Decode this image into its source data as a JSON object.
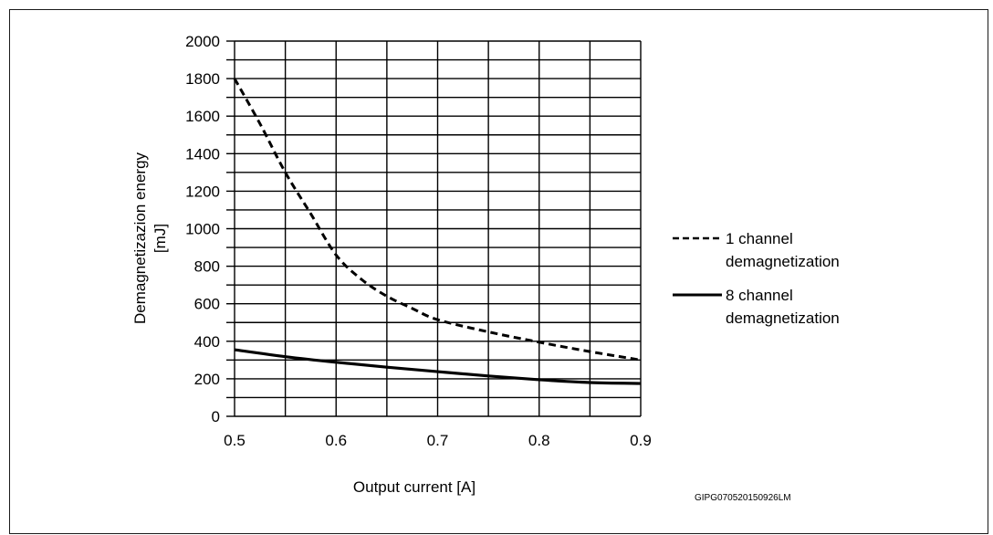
{
  "chart_data": {
    "type": "line",
    "xlabel": "Output current [A]",
    "ylabel_lines": [
      "Demagnetizazion energy",
      "[mJ]"
    ],
    "xlim": [
      0.5,
      0.9
    ],
    "ylim": [
      0,
      2000
    ],
    "x_ticks": [
      0.5,
      0.6,
      0.7,
      0.8,
      0.9
    ],
    "x_tick_labels": [
      "0.5",
      "0.6",
      "0.7",
      "0.8",
      "0.9"
    ],
    "y_ticks": [
      0,
      200,
      400,
      600,
      800,
      1000,
      1200,
      1400,
      1600,
      1800,
      2000
    ],
    "y_tick_labels": [
      "0",
      "200",
      "400",
      "600",
      "800",
      "1000",
      "1200",
      "1400",
      "1600",
      "1800",
      "2000"
    ],
    "grid": true,
    "legend_position": "right",
    "series": [
      {
        "name_lines": [
          "1 channel",
          "demagnetization"
        ],
        "style": "dashed",
        "x": [
          0.5,
          0.525,
          0.55,
          0.575,
          0.6,
          0.625,
          0.65,
          0.675,
          0.7,
          0.75,
          0.8,
          0.85,
          0.9
        ],
        "y": [
          1800,
          1560,
          1300,
          1080,
          860,
          730,
          640,
          575,
          515,
          450,
          395,
          345,
          300
        ]
      },
      {
        "name_lines": [
          "8 channel",
          "demagnetization"
        ],
        "style": "solid",
        "x": [
          0.5,
          0.55,
          0.6,
          0.65,
          0.7,
          0.75,
          0.8,
          0.85,
          0.9
        ],
        "y": [
          355,
          318,
          288,
          262,
          238,
          215,
          195,
          180,
          175
        ]
      }
    ]
  },
  "figure_code": "GIPG070520150926LM"
}
